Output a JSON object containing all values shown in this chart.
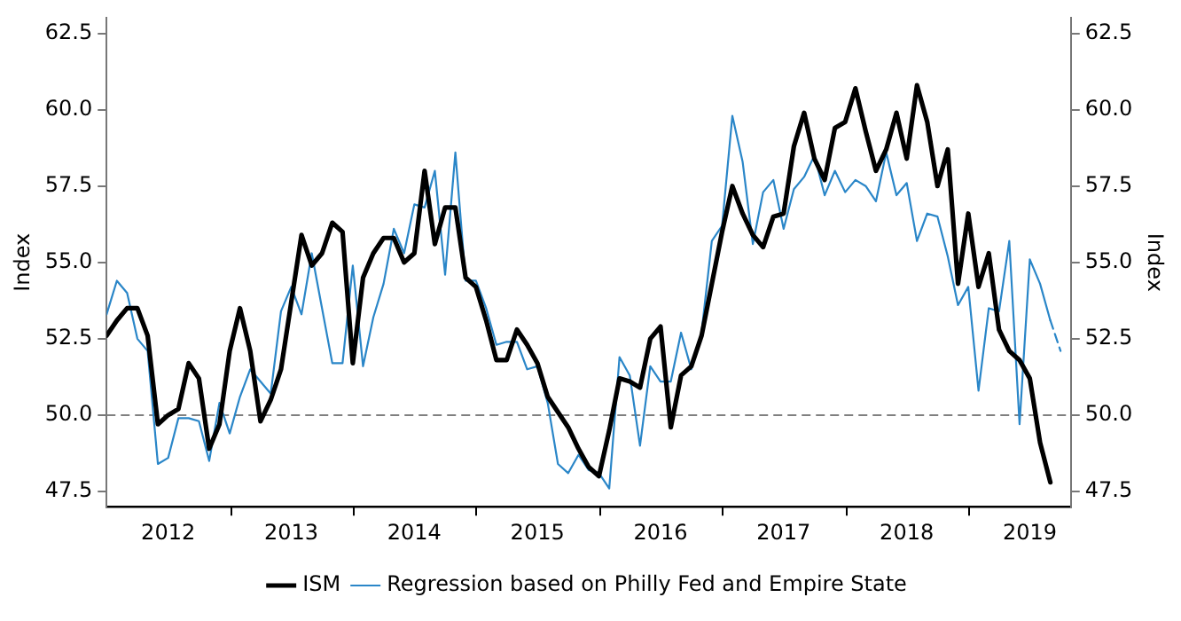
{
  "chart_data": {
    "type": "line",
    "ylabel": "Index",
    "y2label": "Index",
    "legend": "bottom",
    "marker": "none",
    "x": [
      "2012-01",
      "2012-02",
      "2012-03",
      "2012-04",
      "2012-05",
      "2012-06",
      "2012-07",
      "2012-08",
      "2012-09",
      "2012-10",
      "2012-11",
      "2012-12",
      "2013-01",
      "2013-02",
      "2013-03",
      "2013-04",
      "2013-05",
      "2013-06",
      "2013-07",
      "2013-08",
      "2013-09",
      "2013-10",
      "2013-11",
      "2013-12",
      "2014-01",
      "2014-02",
      "2014-03",
      "2014-04",
      "2014-05",
      "2014-06",
      "2014-07",
      "2014-08",
      "2014-09",
      "2014-10",
      "2014-11",
      "2014-12",
      "2015-01",
      "2015-02",
      "2015-03",
      "2015-04",
      "2015-05",
      "2015-06",
      "2015-07",
      "2015-08",
      "2015-09",
      "2015-10",
      "2015-11",
      "2015-12",
      "2016-01",
      "2016-02",
      "2016-03",
      "2016-04",
      "2016-05",
      "2016-06",
      "2016-07",
      "2016-08",
      "2016-09",
      "2016-10",
      "2016-11",
      "2016-12",
      "2017-01",
      "2017-02",
      "2017-03",
      "2017-04",
      "2017-05",
      "2017-06",
      "2017-07",
      "2017-08",
      "2017-09",
      "2017-10",
      "2017-11",
      "2017-12",
      "2018-01",
      "2018-02",
      "2018-03",
      "2018-04",
      "2018-05",
      "2018-06",
      "2018-07",
      "2018-08",
      "2018-09",
      "2018-10",
      "2018-11",
      "2018-12",
      "2019-01",
      "2019-02",
      "2019-03",
      "2019-04",
      "2019-05",
      "2019-06",
      "2019-07",
      "2019-08",
      "2019-09"
    ],
    "series": [
      {
        "name": "ISM",
        "color": "#000000",
        "line_style": "solid",
        "values": [
          52.6,
          53.1,
          53.5,
          53.5,
          52.6,
          49.7,
          50.0,
          50.2,
          51.7,
          51.2,
          48.9,
          49.7,
          52.1,
          53.5,
          52.1,
          49.8,
          50.5,
          51.5,
          53.7,
          55.9,
          54.9,
          55.3,
          56.3,
          56.0,
          51.7,
          54.5,
          55.3,
          55.8,
          55.8,
          55.0,
          55.3,
          58.0,
          55.6,
          56.8,
          56.8,
          54.5,
          54.2,
          53.1,
          51.8,
          51.8,
          52.8,
          52.3,
          51.7,
          50.6,
          50.1,
          49.6,
          48.9,
          48.3,
          48.0,
          49.5,
          51.2,
          51.1,
          50.9,
          52.5,
          52.9,
          49.6,
          51.3,
          51.6,
          52.6,
          54.3,
          56.0,
          57.5,
          56.6,
          55.9,
          55.5,
          56.5,
          56.6,
          58.8,
          59.9,
          58.4,
          57.7,
          59.4,
          59.6,
          60.7,
          59.3,
          58.0,
          58.7,
          59.9,
          58.4,
          60.8,
          59.6,
          57.5,
          58.7,
          54.3,
          56.6,
          54.2,
          55.3,
          52.8,
          52.1,
          51.8,
          51.2,
          49.1,
          47.8
        ]
      },
      {
        "name": "Regression based on Philly Fed and Empire State",
        "color": "#2a86c8",
        "line_style": "solid",
        "values": [
          53.3,
          54.4,
          54.0,
          52.5,
          52.1,
          48.4,
          48.6,
          49.9,
          49.9,
          49.8,
          48.5,
          50.4,
          49.4,
          50.6,
          51.5,
          51.1,
          50.7,
          53.4,
          54.2,
          53.3,
          55.3,
          53.5,
          51.7,
          51.7,
          54.9,
          51.6,
          53.2,
          54.3,
          56.1,
          55.3,
          56.9,
          56.8,
          58.0,
          54.6,
          58.6,
          54.4,
          54.4,
          53.5,
          52.3,
          52.4,
          52.4,
          51.5,
          51.6,
          50.4,
          48.4,
          48.1,
          48.7,
          48.2,
          48.1,
          47.6,
          51.9,
          51.3,
          49.0,
          51.6,
          51.1,
          51.1,
          52.7,
          51.5,
          52.7,
          55.7,
          56.2,
          59.8,
          58.3,
          55.6,
          57.3,
          57.7,
          56.1,
          57.4,
          57.8,
          58.5,
          57.2,
          58.0,
          57.3,
          57.7,
          57.5,
          57.0,
          58.6,
          57.2,
          57.6,
          55.7,
          56.6,
          56.5,
          55.2,
          53.6,
          54.2,
          50.8,
          53.5,
          53.4,
          55.7,
          49.7,
          55.1,
          54.3,
          53.1
        ]
      },
      {
        "color": "#2a86c8",
        "line_style": "dashed",
        "x": [
          "2019-09",
          "2019-10"
        ],
        "values": [
          53.1,
          52.1
        ]
      }
    ],
    "xlim": [
      "2012-01",
      "2019-11"
    ],
    "xticks": [
      {
        "value": "2012-07",
        "label": "2012"
      },
      {
        "value": "2013-01",
        "label": null
      },
      {
        "value": "2013-07",
        "label": "2013"
      },
      {
        "value": "2014-01",
        "label": null
      },
      {
        "value": "2014-07",
        "label": "2014"
      },
      {
        "value": "2015-01",
        "label": null
      },
      {
        "value": "2015-07",
        "label": "2015"
      },
      {
        "value": "2016-01",
        "label": null
      },
      {
        "value": "2016-07",
        "label": "2016"
      },
      {
        "value": "2017-01",
        "label": null
      },
      {
        "value": "2017-07",
        "label": "2017"
      },
      {
        "value": "2018-01",
        "label": null
      },
      {
        "value": "2018-07",
        "label": "2018"
      },
      {
        "value": "2019-01",
        "label": null
      },
      {
        "value": "2019-07",
        "label": "2019"
      }
    ],
    "ylim": [
      47,
      63
    ],
    "yticks": [
      47.5,
      {
        "value": 50,
        "label": "50.0"
      },
      52.5,
      {
        "value": 55,
        "label": "55.0"
      },
      57.5,
      {
        "value": 60,
        "label": "60.0"
      },
      62.5
    ],
    "y2lim": [
      47,
      63
    ],
    "y2ticks": [
      47.5,
      {
        "value": 50,
        "label": "50.0"
      },
      52.5,
      {
        "value": 55,
        "label": "55.0"
      },
      57.5,
      {
        "value": 60,
        "label": "60.0"
      },
      62.5
    ],
    "ref_lines": [
      {
        "axis": "y",
        "value": 50,
        "color": "#808080",
        "line_style": "dashed"
      }
    ]
  }
}
